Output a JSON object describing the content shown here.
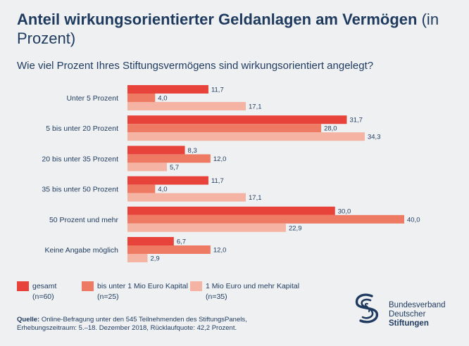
{
  "title": {
    "bold": "Anteil wirkungsorientierter Geldanlagen am Vermögen",
    "light": "(in Prozent)"
  },
  "subtitle": "Wie viel Prozent Ihres Stiftungsvermögens sind wirkungsorientiert angelegt?",
  "chart_data": {
    "type": "bar",
    "orientation": "horizontal",
    "categories": [
      "Unter 5 Prozent",
      "5 bis unter 20 Prozent",
      "20 bis unter 35 Prozent",
      "35 bis unter 50 Prozent",
      "50 Prozent und mehr",
      "Keine Angabe möglich"
    ],
    "series": [
      {
        "name": "gesamt",
        "n": "(n=60)",
        "color": "#e8433a",
        "values": [
          11.7,
          31.7,
          8.3,
          11.7,
          30.0,
          6.7
        ],
        "labels": [
          "11,7",
          "31,7",
          "8,3",
          "11,7",
          "30,0",
          "6,7"
        ]
      },
      {
        "name": "bis unter 1 Mio Euro Kapital",
        "n": "(n=25)",
        "color": "#ef7a64",
        "values": [
          4.0,
          28.0,
          12.0,
          4.0,
          40.0,
          12.0
        ],
        "labels": [
          "4,0",
          "28,0",
          "12,0",
          "4,0",
          "40,0",
          "12,0"
        ]
      },
      {
        "name": "1 Mio Euro und mehr Kapital",
        "n": "(n=35)",
        "color": "#f5b4a3",
        "values": [
          17.1,
          34.3,
          5.7,
          17.1,
          22.9,
          2.9
        ],
        "labels": [
          "17,1",
          "34,3",
          "5,7",
          "17,1",
          "22,9",
          "2,9"
        ]
      }
    ],
    "xlim": [
      0,
      40
    ],
    "grid": false,
    "legend": "bottom-left",
    "background": "#eef0f1"
  },
  "source": {
    "label": "Quelle:",
    "line1": "Online-Befragung unter den 545 Teilnehmenden des StiftungsPanels,",
    "line2": "Erhebungszeitraum: 5.–18. Dezember 2018, Rücklaufquote: 42,2 Prozent."
  },
  "logo": {
    "icon": "bundesverband-s-logo-icon",
    "line1": "Bundesverband",
    "line2": "Deutscher",
    "line3": "Stiftungen",
    "color": "#1f3a5f"
  }
}
